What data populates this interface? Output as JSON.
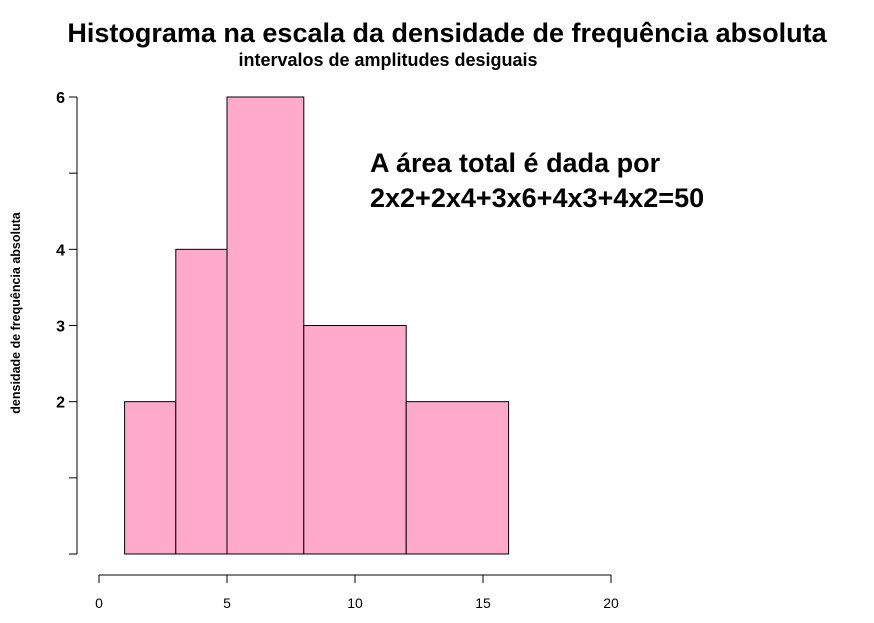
{
  "chart_data": {
    "type": "bar",
    "title": "Histograma na escala da densidade de frequência absoluta",
    "subtitle": "intervalos de amplitudes desiguais",
    "ylabel": "densidade de frequência absoluta",
    "xlabel": "",
    "bins": [
      {
        "start": 1,
        "end": 3,
        "density": 2
      },
      {
        "start": 3,
        "end": 5,
        "density": 4
      },
      {
        "start": 5,
        "end": 8,
        "density": 6
      },
      {
        "start": 8,
        "end": 12,
        "density": 3
      },
      {
        "start": 12,
        "end": 16,
        "density": 2
      }
    ],
    "xlim": [
      0,
      20
    ],
    "ylim": [
      0,
      6
    ],
    "xticks": [
      0,
      5,
      10,
      15,
      20
    ],
    "xtick_labels": [
      "0",
      "5",
      "10",
      "15",
      "20"
    ],
    "yticks": [
      0,
      1,
      2,
      3,
      4,
      5,
      6
    ],
    "ytick_labels": [
      "",
      "",
      "2",
      "3",
      "4",
      "",
      "6"
    ],
    "annotation_lines": [
      "A área total é dada por",
      "2x2+2x4+3x6+4x3+4x2=50"
    ],
    "grid": false,
    "bar_color": "#ffaac8"
  }
}
